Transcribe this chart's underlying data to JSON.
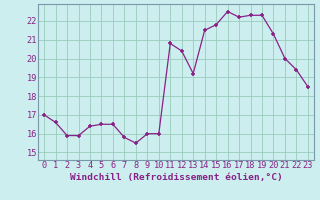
{
  "x": [
    0,
    1,
    2,
    3,
    4,
    5,
    6,
    7,
    8,
    9,
    10,
    11,
    12,
    13,
    14,
    15,
    16,
    17,
    18,
    19,
    20,
    21,
    22,
    23
  ],
  "y": [
    17.0,
    16.6,
    15.9,
    15.9,
    16.4,
    16.5,
    16.5,
    15.8,
    15.5,
    16.0,
    16.0,
    20.8,
    20.4,
    19.2,
    21.5,
    21.8,
    22.5,
    22.2,
    22.3,
    22.3,
    21.3,
    20.0,
    19.4,
    18.5
  ],
  "line_color": "#882288",
  "marker": "+",
  "bg_color": "#cceeee",
  "grid_color": "#99ccbb",
  "xlabel": "Windchill (Refroidissement éolien,°C)",
  "ylabel_ticks": [
    15,
    16,
    17,
    18,
    19,
    20,
    21,
    22
  ],
  "ylim": [
    14.6,
    22.9
  ],
  "xlim": [
    -0.5,
    23.5
  ],
  "tick_color": "#882288",
  "label_color": "#882288",
  "xlabel_fontsize": 6.8,
  "tick_fontsize": 6.2,
  "spine_color": "#7799aa"
}
